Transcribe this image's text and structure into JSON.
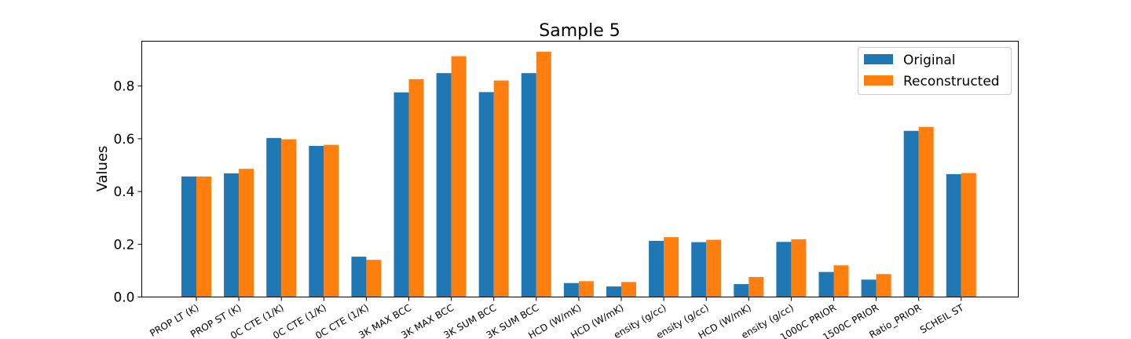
{
  "chart_data": {
    "type": "bar",
    "title": "Sample 5",
    "xlabel": "",
    "ylabel": "Values",
    "ylim": [
      0,
      0.97
    ],
    "yticks": [
      0.0,
      0.2,
      0.4,
      0.6,
      0.8
    ],
    "ytick_labels": [
      "0.0",
      "0.2",
      "0.4",
      "0.6",
      "0.8"
    ],
    "legend_position": "top-right",
    "grid": false,
    "categories": [
      "PROP LT (K)",
      "PROP ST (K)",
      "0C CTE (1/K)",
      "0C CTE (1/K)",
      "0C CTE (1/K)",
      "3K MAX BCC",
      "3K MAX BCC",
      "3K SUM BCC",
      "3K SUM BCC",
      "HCD (W/mK)",
      "HCD (W/mK)",
      "ensity (g/cc)",
      "ensity (g/cc)",
      "HCD (W/mK)",
      "ensity (g/cc)",
      "1000C PRIOR",
      "1500C PRIOR",
      "Ratio_PRIOR",
      "SCHEIL ST"
    ],
    "series": [
      {
        "name": "Original",
        "color": "#1f77b4",
        "values": [
          0.457,
          0.469,
          0.603,
          0.573,
          0.153,
          0.776,
          0.849,
          0.777,
          0.849,
          0.053,
          0.04,
          0.213,
          0.208,
          0.049,
          0.209,
          0.095,
          0.066,
          0.63,
          0.466
        ]
      },
      {
        "name": "Reconstructed",
        "color": "#ff7f0e",
        "values": [
          0.457,
          0.486,
          0.598,
          0.577,
          0.141,
          0.826,
          0.913,
          0.821,
          0.93,
          0.06,
          0.057,
          0.227,
          0.217,
          0.076,
          0.219,
          0.12,
          0.087,
          0.645,
          0.47
        ]
      }
    ]
  }
}
